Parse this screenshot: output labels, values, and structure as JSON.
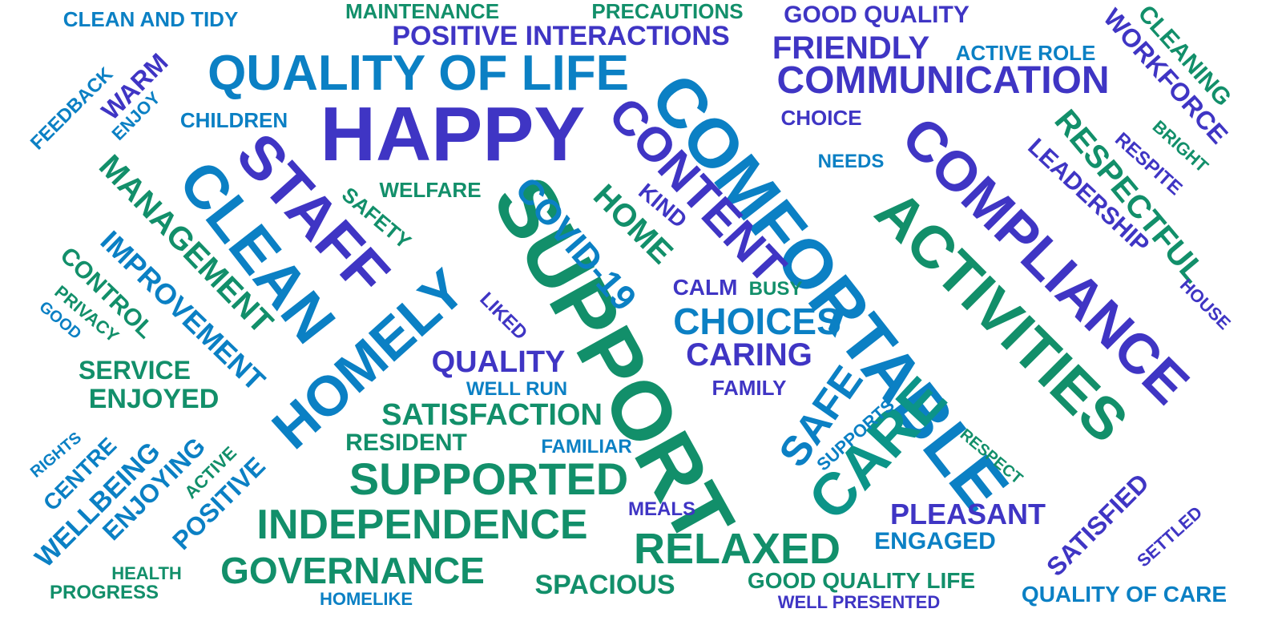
{
  "palette": {
    "indigo": "#3f35c4",
    "blue": "#0b80c4",
    "teal": "#0c9488",
    "green": "#128f6a"
  },
  "words": [
    {
      "text": "HAPPY",
      "color": "indigo"
    },
    {
      "text": "SUPPORT",
      "color": "green"
    },
    {
      "text": "COMFORTABLE",
      "color": "blue"
    },
    {
      "text": "QUALITY OF LIFE",
      "color": "blue"
    },
    {
      "text": "STAFF",
      "color": "indigo"
    },
    {
      "text": "CLEAN",
      "color": "blue"
    },
    {
      "text": "COMPLIANCE",
      "color": "indigo"
    },
    {
      "text": "ACTIVITIES",
      "color": "green"
    },
    {
      "text": "CARE",
      "color": "teal"
    },
    {
      "text": "HOMELY",
      "color": "blue"
    },
    {
      "text": "CONTENT",
      "color": "indigo"
    },
    {
      "text": "COMMUNICATION",
      "color": "indigo"
    },
    {
      "text": "SUPPORTED",
      "color": "green"
    },
    {
      "text": "INDEPENDENCE",
      "color": "green"
    },
    {
      "text": "RELAXED",
      "color": "green"
    },
    {
      "text": "GOVERNANCE",
      "color": "green"
    },
    {
      "text": "MANAGEMENT",
      "color": "green"
    },
    {
      "text": "IMPROVEMENT",
      "color": "blue"
    },
    {
      "text": "RESPECTFUL",
      "color": "green"
    },
    {
      "text": "FRIENDLY",
      "color": "indigo"
    },
    {
      "text": "COVID-19",
      "color": "blue"
    },
    {
      "text": "CHOICES",
      "color": "blue"
    },
    {
      "text": "CARING",
      "color": "indigo"
    },
    {
      "text": "SAFE",
      "color": "blue"
    },
    {
      "text": "HOME",
      "color": "green"
    },
    {
      "text": "LEADERSHIP",
      "color": "indigo"
    },
    {
      "text": "WORKFORCE",
      "color": "indigo"
    },
    {
      "text": "CLEANING",
      "color": "green"
    },
    {
      "text": "POSITIVE INTERACTIONS",
      "color": "indigo"
    },
    {
      "text": "GOOD QUALITY",
      "color": "indigo"
    },
    {
      "text": "SATISFACTION",
      "color": "green"
    },
    {
      "text": "QUALITY",
      "color": "indigo"
    },
    {
      "text": "PLEASANT",
      "color": "indigo"
    },
    {
      "text": "ENJOYED",
      "color": "green"
    },
    {
      "text": "SERVICE",
      "color": "green"
    },
    {
      "text": "SPACIOUS",
      "color": "green"
    },
    {
      "text": "SATISFIED",
      "color": "indigo"
    },
    {
      "text": "ENGAGED",
      "color": "blue"
    },
    {
      "text": "RESIDENT",
      "color": "green"
    },
    {
      "text": "GOOD QUALITY LIFE",
      "color": "green"
    },
    {
      "text": "QUALITY OF CARE",
      "color": "blue"
    },
    {
      "text": "WELLBEING",
      "color": "blue"
    },
    {
      "text": "ENJOYING",
      "color": "blue"
    },
    {
      "text": "POSITIVE",
      "color": "blue"
    },
    {
      "text": "CENTRE",
      "color": "blue"
    },
    {
      "text": "CONTROL",
      "color": "green"
    },
    {
      "text": "WARM",
      "color": "indigo"
    },
    {
      "text": "CHILDREN",
      "color": "blue"
    },
    {
      "text": "CLEAN AND TIDY",
      "color": "blue"
    },
    {
      "text": "MAINTENANCE",
      "color": "green"
    },
    {
      "text": "PRECAUTIONS",
      "color": "green"
    },
    {
      "text": "ACTIVE ROLE",
      "color": "blue"
    },
    {
      "text": "CHOICE",
      "color": "indigo"
    },
    {
      "text": "NEEDS",
      "color": "blue"
    },
    {
      "text": "WELFARE",
      "color": "green"
    },
    {
      "text": "SAFETY",
      "color": "green"
    },
    {
      "text": "KIND",
      "color": "indigo"
    },
    {
      "text": "CALM",
      "color": "indigo"
    },
    {
      "text": "BUSY",
      "color": "green"
    },
    {
      "text": "FAMILY",
      "color": "indigo"
    },
    {
      "text": "WELL RUN",
      "color": "blue"
    },
    {
      "text": "FAMILIAR",
      "color": "blue"
    },
    {
      "text": "MEALS",
      "color": "indigo"
    },
    {
      "text": "LIKED",
      "color": "indigo"
    },
    {
      "text": "SUPPORTS",
      "color": "blue"
    },
    {
      "text": "RESPECT",
      "color": "green"
    },
    {
      "text": "RESPITE",
      "color": "indigo"
    },
    {
      "text": "BRIGHT",
      "color": "green"
    },
    {
      "text": "HOUSE",
      "color": "indigo"
    },
    {
      "text": "SETTLED",
      "color": "indigo"
    },
    {
      "text": "FEEDBACK",
      "color": "blue"
    },
    {
      "text": "ENJOY",
      "color": "blue"
    },
    {
      "text": "PRIVACY",
      "color": "green"
    },
    {
      "text": "GOOD",
      "color": "blue"
    },
    {
      "text": "RIGHTS",
      "color": "blue"
    },
    {
      "text": "ACTIVE",
      "color": "green"
    },
    {
      "text": "HEALTH",
      "color": "green"
    },
    {
      "text": "PROGRESS",
      "color": "green"
    },
    {
      "text": "HOMELIKE",
      "color": "blue"
    },
    {
      "text": "WELL PRESENTED",
      "color": "indigo"
    }
  ]
}
